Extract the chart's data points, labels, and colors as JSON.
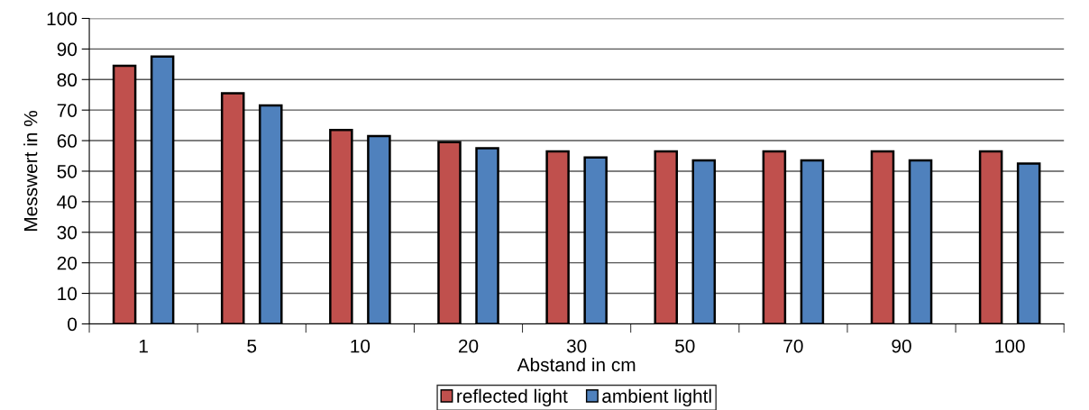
{
  "chart_data": {
    "type": "bar",
    "xlabel": "Abstand in cm",
    "ylabel": "Messwert in %",
    "categories": [
      "1",
      "5",
      "10",
      "20",
      "30",
      "50",
      "70",
      "90",
      "100"
    ],
    "series": [
      {
        "name": "reflected light",
        "color": "#c0504d",
        "values": [
          84.5,
          75.5,
          63.5,
          59.5,
          56.5,
          56.5,
          56.5,
          56.5,
          56.5
        ]
      },
      {
        "name": "ambient lightl",
        "color": "#4f81bd",
        "values": [
          87.5,
          71.5,
          61.5,
          57.5,
          54.5,
          53.5,
          53.5,
          53.5,
          52.5
        ]
      }
    ],
    "ylim": [
      0,
      100
    ],
    "yticks": [
      0,
      10,
      20,
      30,
      40,
      50,
      60,
      70,
      80,
      90,
      100
    ],
    "grid": "y",
    "legend": "bottom"
  }
}
